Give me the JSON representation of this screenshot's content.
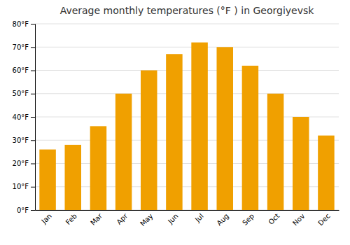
{
  "chart_data": {
    "type": "bar",
    "title": "Average monthly temperatures (°F ) in Georgiyevsk",
    "categories": [
      "Jan",
      "Feb",
      "Mar",
      "Apr",
      "May",
      "Jun",
      "Jul",
      "Aug",
      "Sep",
      "Oct",
      "Nov",
      "Dec"
    ],
    "values": [
      26,
      28,
      36,
      50,
      60,
      67,
      72,
      70,
      62,
      50,
      40,
      32
    ],
    "color": "#F0A000",
    "ylim": [
      0,
      80
    ],
    "yticks": [
      {
        "value": 0,
        "label": "0°F"
      },
      {
        "value": 10,
        "label": "10°F"
      },
      {
        "value": 20,
        "label": "20°F"
      },
      {
        "value": 30,
        "label": "30°F"
      },
      {
        "value": 40,
        "label": "40°F"
      },
      {
        "value": 50,
        "label": "50°F"
      },
      {
        "value": 60,
        "label": "60°F"
      },
      {
        "value": 70,
        "label": "70°F"
      },
      {
        "value": 80,
        "label": "80°F"
      }
    ],
    "grid": true
  }
}
